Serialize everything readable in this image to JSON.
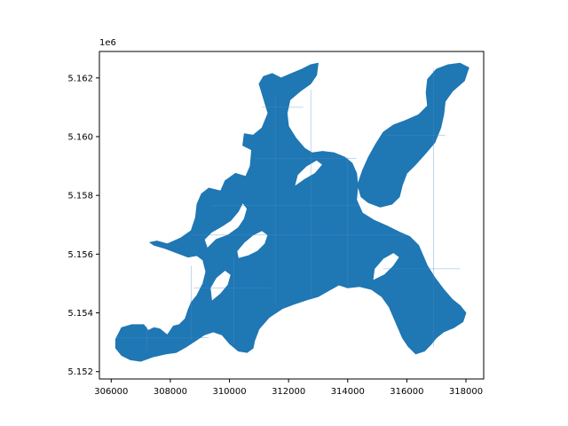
{
  "figure": {
    "y_offset_text": "1e6"
  },
  "chart_data": {
    "type": "map",
    "fill_color": "#1f77b4",
    "edge_color": "#4a8fc9",
    "axis_color": "#000000",
    "xlim": [
      305600,
      318600
    ],
    "ylim": [
      5151750,
      5162900
    ],
    "x_ticks": [
      {
        "value": 306000,
        "label": "306000"
      },
      {
        "value": 308000,
        "label": "308000"
      },
      {
        "value": 310000,
        "label": "310000"
      },
      {
        "value": 312000,
        "label": "312000"
      },
      {
        "value": 314000,
        "label": "314000"
      },
      {
        "value": 316000,
        "label": "316000"
      },
      {
        "value": 318000,
        "label": "318000"
      }
    ],
    "y_ticks": [
      {
        "value": 5152000,
        "label": "5.152"
      },
      {
        "value": 5154000,
        "label": "5.154"
      },
      {
        "value": 5156000,
        "label": "5.156"
      },
      {
        "value": 5158000,
        "label": "5.158"
      },
      {
        "value": 5160000,
        "label": "5.160"
      },
      {
        "value": 5162000,
        "label": "5.162"
      }
    ],
    "polygon": [
      [
        306150,
        5153100
      ],
      [
        306350,
        5153500
      ],
      [
        306700,
        5153600
      ],
      [
        307100,
        5153600
      ],
      [
        307250,
        5153400
      ],
      [
        307450,
        5153500
      ],
      [
        307650,
        5153450
      ],
      [
        307900,
        5153250
      ],
      [
        308100,
        5153550
      ],
      [
        308300,
        5153600
      ],
      [
        308500,
        5153800
      ],
      [
        308600,
        5154100
      ],
      [
        308700,
        5154350
      ],
      [
        308900,
        5154600
      ],
      [
        309100,
        5155000
      ],
      [
        309200,
        5155400
      ],
      [
        309100,
        5155800
      ],
      [
        308900,
        5155950
      ],
      [
        308600,
        5155900
      ],
      [
        308200,
        5156050
      ],
      [
        307800,
        5156200
      ],
      [
        307450,
        5156300
      ],
      [
        307300,
        5156400
      ],
      [
        307550,
        5156450
      ],
      [
        307900,
        5156350
      ],
      [
        308350,
        5156550
      ],
      [
        308700,
        5156800
      ],
      [
        308850,
        5157250
      ],
      [
        308900,
        5157700
      ],
      [
        309050,
        5158050
      ],
      [
        309300,
        5158250
      ],
      [
        309700,
        5158150
      ],
      [
        309850,
        5158500
      ],
      [
        310200,
        5158750
      ],
      [
        310550,
        5158650
      ],
      [
        310700,
        5159000
      ],
      [
        310750,
        5159550
      ],
      [
        310450,
        5159700
      ],
      [
        310500,
        5160100
      ],
      [
        310800,
        5160050
      ],
      [
        311100,
        5160300
      ],
      [
        311300,
        5160800
      ],
      [
        311150,
        5161300
      ],
      [
        311000,
        5161800
      ],
      [
        311150,
        5162050
      ],
      [
        311450,
        5162150
      ],
      [
        311750,
        5162000
      ],
      [
        312100,
        5162150
      ],
      [
        312450,
        5162300
      ],
      [
        312750,
        5162450
      ],
      [
        313000,
        5162500
      ],
      [
        312950,
        5162100
      ],
      [
        312750,
        5161800
      ],
      [
        312400,
        5161550
      ],
      [
        312050,
        5161250
      ],
      [
        311950,
        5160800
      ],
      [
        312000,
        5160350
      ],
      [
        312250,
        5159950
      ],
      [
        312550,
        5159600
      ],
      [
        312800,
        5159450
      ],
      [
        313150,
        5159500
      ],
      [
        313550,
        5159450
      ],
      [
        313900,
        5159300
      ],
      [
        314150,
        5159100
      ],
      [
        314300,
        5158750
      ],
      [
        314350,
        5158300
      ],
      [
        314450,
        5157950
      ],
      [
        314700,
        5157750
      ],
      [
        315100,
        5157600
      ],
      [
        315500,
        5157700
      ],
      [
        315750,
        5157950
      ],
      [
        315850,
        5158350
      ],
      [
        316000,
        5158750
      ],
      [
        316300,
        5159050
      ],
      [
        316650,
        5159450
      ],
      [
        316950,
        5159800
      ],
      [
        317150,
        5160300
      ],
      [
        317250,
        5160750
      ],
      [
        317300,
        5161200
      ],
      [
        317550,
        5161550
      ],
      [
        317950,
        5161900
      ],
      [
        318100,
        5162350
      ],
      [
        317800,
        5162500
      ],
      [
        317400,
        5162450
      ],
      [
        317000,
        5162300
      ],
      [
        316700,
        5161950
      ],
      [
        316650,
        5161500
      ],
      [
        316700,
        5161050
      ],
      [
        316400,
        5160750
      ],
      [
        315950,
        5160550
      ],
      [
        315550,
        5160400
      ],
      [
        315200,
        5160150
      ],
      [
        314950,
        5159750
      ],
      [
        314700,
        5159300
      ],
      [
        314500,
        5158850
      ],
      [
        314350,
        5158400
      ],
      [
        314300,
        5157850
      ],
      [
        314500,
        5157400
      ],
      [
        314900,
        5157150
      ],
      [
        315350,
        5156950
      ],
      [
        315750,
        5156750
      ],
      [
        316100,
        5156600
      ],
      [
        316400,
        5156300
      ],
      [
        316550,
        5155950
      ],
      [
        316700,
        5155600
      ],
      [
        316950,
        5155200
      ],
      [
        317250,
        5154800
      ],
      [
        317550,
        5154450
      ],
      [
        317800,
        5154250
      ],
      [
        318000,
        5154000
      ],
      [
        317900,
        5153700
      ],
      [
        317600,
        5153500
      ],
      [
        317250,
        5153350
      ],
      [
        317000,
        5153150
      ],
      [
        316800,
        5152900
      ],
      [
        316600,
        5152700
      ],
      [
        316300,
        5152600
      ],
      [
        316050,
        5152850
      ],
      [
        315850,
        5153150
      ],
      [
        315700,
        5153500
      ],
      [
        315550,
        5153850
      ],
      [
        315400,
        5154200
      ],
      [
        315150,
        5154550
      ],
      [
        314800,
        5154800
      ],
      [
        314400,
        5154900
      ],
      [
        314000,
        5154850
      ],
      [
        313700,
        5154950
      ],
      [
        313350,
        5154750
      ],
      [
        313000,
        5154550
      ],
      [
        312650,
        5154450
      ],
      [
        312200,
        5154300
      ],
      [
        311800,
        5154150
      ],
      [
        311350,
        5153850
      ],
      [
        311000,
        5153450
      ],
      [
        310850,
        5153050
      ],
      [
        310800,
        5152800
      ],
      [
        310600,
        5152650
      ],
      [
        310300,
        5152700
      ],
      [
        310000,
        5152950
      ],
      [
        309750,
        5153250
      ],
      [
        309450,
        5153350
      ],
      [
        309150,
        5153250
      ],
      [
        308850,
        5153050
      ],
      [
        308550,
        5152850
      ],
      [
        308200,
        5152650
      ],
      [
        307850,
        5152600
      ],
      [
        307400,
        5152500
      ],
      [
        307000,
        5152350
      ],
      [
        306650,
        5152400
      ],
      [
        306350,
        5152550
      ],
      [
        306150,
        5152800
      ]
    ],
    "holes": [
      [
        [
          309250,
          5156200
        ],
        [
          309550,
          5156500
        ],
        [
          309950,
          5156650
        ],
        [
          310300,
          5156900
        ],
        [
          310500,
          5157200
        ],
        [
          310600,
          5157550
        ],
        [
          310450,
          5157750
        ],
        [
          310300,
          5157450
        ],
        [
          310050,
          5157150
        ],
        [
          309750,
          5156950
        ],
        [
          309400,
          5156750
        ],
        [
          309150,
          5156500
        ]
      ],
      [
        [
          310300,
          5155850
        ],
        [
          310650,
          5155950
        ],
        [
          310950,
          5156100
        ],
        [
          311200,
          5156350
        ],
        [
          311300,
          5156650
        ],
        [
          311100,
          5156800
        ],
        [
          310800,
          5156650
        ],
        [
          310500,
          5156400
        ],
        [
          310250,
          5156100
        ]
      ],
      [
        [
          309400,
          5154400
        ],
        [
          309700,
          5154650
        ],
        [
          309950,
          5154950
        ],
        [
          310050,
          5155300
        ],
        [
          309850,
          5155450
        ],
        [
          309550,
          5155200
        ],
        [
          309350,
          5154850
        ]
      ],
      [
        [
          312200,
          5158300
        ],
        [
          312550,
          5158550
        ],
        [
          312900,
          5158750
        ],
        [
          313150,
          5159050
        ],
        [
          312950,
          5159200
        ],
        [
          312600,
          5159000
        ],
        [
          312300,
          5158700
        ]
      ],
      [
        [
          314850,
          5155100
        ],
        [
          315250,
          5155300
        ],
        [
          315550,
          5155600
        ],
        [
          315750,
          5155900
        ],
        [
          315550,
          5156050
        ],
        [
          315200,
          5155850
        ],
        [
          314900,
          5155500
        ]
      ]
    ],
    "gridlines": [
      [
        [
          307200,
          5152700
        ],
        [
          307200,
          5153550
        ]
      ],
      [
        [
          308700,
          5153100
        ],
        [
          308700,
          5155600
        ]
      ],
      [
        [
          310150,
          5152900
        ],
        [
          310150,
          5155900
        ]
      ],
      [
        [
          311550,
          5154300
        ],
        [
          311550,
          5161400
        ]
      ],
      [
        [
          312750,
          5154550
        ],
        [
          312750,
          5161600
        ]
      ],
      [
        [
          314000,
          5154900
        ],
        [
          314000,
          5159300
        ]
      ],
      [
        [
          316900,
          5152850
        ],
        [
          316900,
          5162300
        ]
      ],
      [
        [
          306200,
          5153150
        ],
        [
          309300,
          5153150
        ]
      ],
      [
        [
          308800,
          5154850
        ],
        [
          311400,
          5154850
        ]
      ],
      [
        [
          308700,
          5156650
        ],
        [
          316000,
          5156650
        ]
      ],
      [
        [
          309400,
          5157650
        ],
        [
          314400,
          5157650
        ]
      ],
      [
        [
          310900,
          5159250
        ],
        [
          314300,
          5159250
        ]
      ],
      [
        [
          311100,
          5161000
        ],
        [
          312500,
          5161000
        ]
      ],
      [
        [
          315300,
          5160050
        ],
        [
          317300,
          5160050
        ]
      ],
      [
        [
          315200,
          5155500
        ],
        [
          317800,
          5155500
        ]
      ]
    ]
  }
}
